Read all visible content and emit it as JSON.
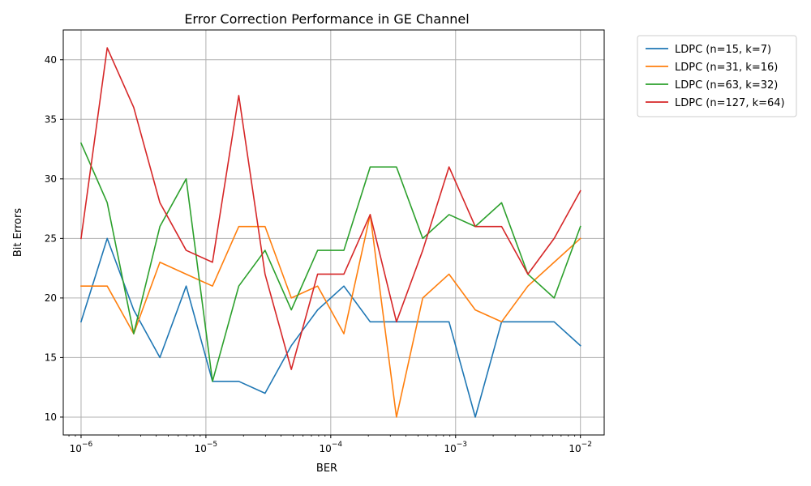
{
  "chart_data": {
    "type": "line",
    "title": "Error Correction Performance in GE Channel",
    "xlabel": "BER",
    "ylabel": "Bit Errors",
    "x_scale": "log",
    "xlim": [
      7.2e-07,
      0.0155
    ],
    "ylim": [
      8.5,
      42.5
    ],
    "grid": true,
    "legend_position": "outside-top-right",
    "x_ticks": [
      1e-06,
      1e-05,
      0.0001,
      0.001,
      0.01
    ],
    "x_tick_base": "10",
    "x_tick_exponents": [
      "−6",
      "−5",
      "−4",
      "−3",
      "−2"
    ],
    "y_ticks": [
      10,
      15,
      20,
      25,
      30,
      35,
      40
    ],
    "y_tick_labels": [
      "10",
      "15",
      "20",
      "25",
      "30",
      "35",
      "40"
    ],
    "x": [
      1e-06,
      1.62e-06,
      2.64e-06,
      4.28e-06,
      6.95e-06,
      1.129e-05,
      1.833e-05,
      2.976e-05,
      4.833e-05,
      7.848e-05,
      0.0001274,
      0.0002069,
      0.000336,
      0.0005456,
      0.000886,
      0.001438,
      0.002336,
      0.003793,
      0.006158,
      0.01
    ],
    "series": [
      {
        "name": "LDPC (n=15, k=7)",
        "color": "#1f77b4",
        "values": [
          18,
          25,
          19,
          15,
          21,
          13,
          13,
          12,
          16,
          19,
          21,
          18,
          18,
          18,
          18,
          10,
          18,
          18,
          18,
          16
        ]
      },
      {
        "name": "LDPC (n=31, k=16)",
        "color": "#ff7f0e",
        "values": [
          21,
          21,
          17,
          23,
          22,
          21,
          26,
          26,
          20,
          21,
          17,
          27,
          10,
          20,
          22,
          19,
          18,
          21,
          23,
          25
        ]
      },
      {
        "name": "LDPC (n=63, k=32)",
        "color": "#2ca02c",
        "values": [
          33,
          28,
          17,
          26,
          30,
          13,
          21,
          24,
          19,
          24,
          24,
          31,
          31,
          25,
          27,
          26,
          28,
          22,
          20,
          26
        ]
      },
      {
        "name": "LDPC (n=127, k=64)",
        "color": "#d62728",
        "values": [
          25,
          41,
          36,
          28,
          24,
          23,
          37,
          22,
          14,
          22,
          22,
          27,
          18,
          24,
          31,
          26,
          26,
          22,
          25,
          29
        ]
      }
    ]
  }
}
